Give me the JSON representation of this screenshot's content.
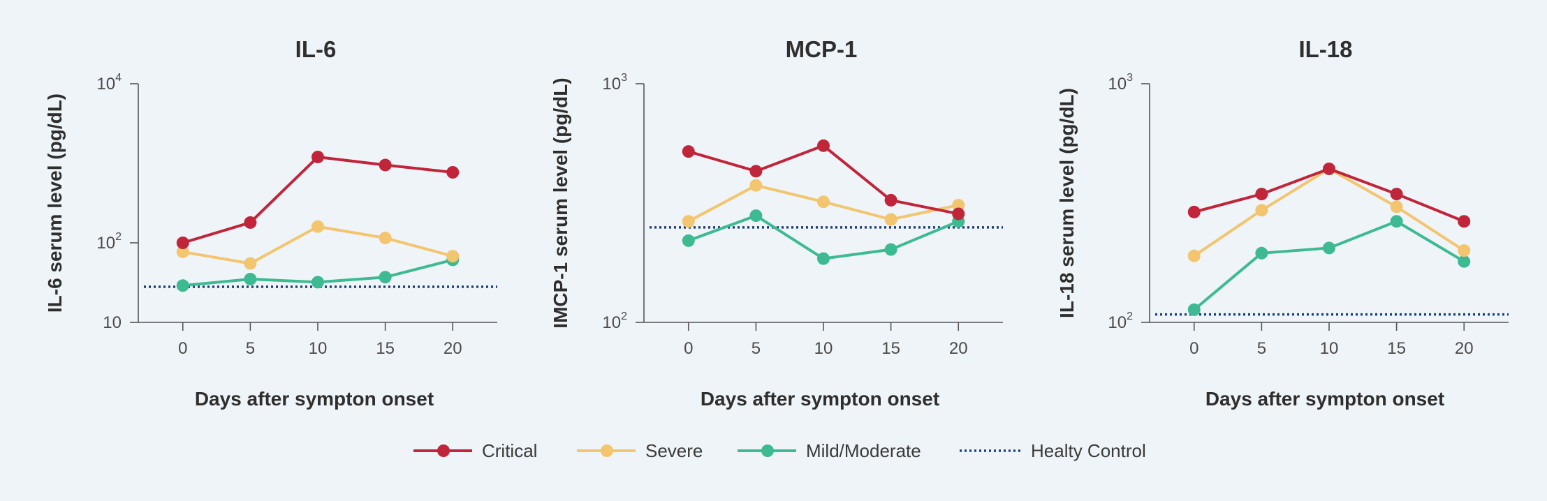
{
  "chart_data": [
    {
      "type": "line",
      "title": "IL-6",
      "ylabel": "IL-6 serum level (pg/dL)",
      "xlabel": "Days after sympton onset",
      "yscale": "log",
      "ylim": [
        10,
        10000
      ],
      "yticks": [
        {
          "value": 10,
          "base": "10",
          "exp": ""
        },
        {
          "value": 100,
          "base": "10",
          "exp": "2"
        },
        {
          "value": 10000,
          "base": "10",
          "exp": "4"
        }
      ],
      "x": [
        0,
        5,
        10,
        15,
        20
      ],
      "xticks": [
        "0",
        "5",
        "10",
        "15",
        "20"
      ],
      "xlim": [
        -3.3,
        23.3
      ],
      "reference": 28,
      "series": [
        {
          "name": "Critical",
          "values": [
            100,
            180,
            1200,
            950,
            770
          ]
        },
        {
          "name": "Severe",
          "values": [
            77,
            55,
            160,
            115,
            68
          ]
        },
        {
          "name": "Mild/Moderate",
          "values": [
            29,
            35,
            32,
            37,
            61
          ]
        }
      ]
    },
    {
      "type": "line",
      "title": "MCP-1",
      "ylabel": "IMCP-1 serum level (pg/dL)",
      "xlabel": "Days after sympton onset",
      "yscale": "log",
      "ylim": [
        100,
        1000
      ],
      "yticks": [
        {
          "value": 100,
          "base": "10",
          "exp": "2"
        },
        {
          "value": 1000,
          "base": "10",
          "exp": "3"
        }
      ],
      "x": [
        0,
        5,
        10,
        15,
        20
      ],
      "xticks": [
        "0",
        "5",
        "10",
        "15",
        "20"
      ],
      "xlim": [
        -3.3,
        23.3
      ],
      "reference": 250,
      "series": [
        {
          "name": "Critical",
          "values": [
            520,
            430,
            550,
            325,
            285
          ]
        },
        {
          "name": "Severe",
          "values": [
            265,
            375,
            320,
            270,
            310
          ]
        },
        {
          "name": "Mild/Moderate",
          "values": [
            220,
            280,
            185,
            202,
            265
          ]
        }
      ]
    },
    {
      "type": "line",
      "title": "IL-18",
      "ylabel": "IL-18 serum level (pg/dL)",
      "xlabel": "Days after sympton onset",
      "yscale": "log",
      "ylim": [
        100,
        1000
      ],
      "yticks": [
        {
          "value": 100,
          "base": "10",
          "exp": "2"
        },
        {
          "value": 1000,
          "base": "10",
          "exp": "3"
        }
      ],
      "x": [
        0,
        5,
        10,
        15,
        20
      ],
      "xticks": [
        "0",
        "5",
        "10",
        "15",
        "20"
      ],
      "xlim": [
        -3.3,
        23.3
      ],
      "reference": 108,
      "series": [
        {
          "name": "Critical",
          "values": [
            290,
            345,
            440,
            345,
            265
          ]
        },
        {
          "name": "Severe",
          "values": [
            190,
            295,
            440,
            305,
            200
          ]
        },
        {
          "name": "Mild/Moderate",
          "values": [
            113,
            195,
            205,
            265,
            180
          ]
        }
      ]
    }
  ],
  "legend": {
    "position": "bottom",
    "items": [
      {
        "name": "Critical",
        "type": "line-marker",
        "color": "#c0253a"
      },
      {
        "name": "Severe",
        "type": "line-marker",
        "color": "#f2c56e"
      },
      {
        "name": "Mild/Moderate",
        "type": "line-marker",
        "color": "#3dba92"
      },
      {
        "name": "Healty Control",
        "type": "dotted-line",
        "color": "#1c3f7a"
      }
    ]
  },
  "colors": {
    "Critical": "#c0253a",
    "Severe": "#f2c56e",
    "Mild/Moderate": "#3dba92",
    "reference": "#1c3f7a"
  }
}
